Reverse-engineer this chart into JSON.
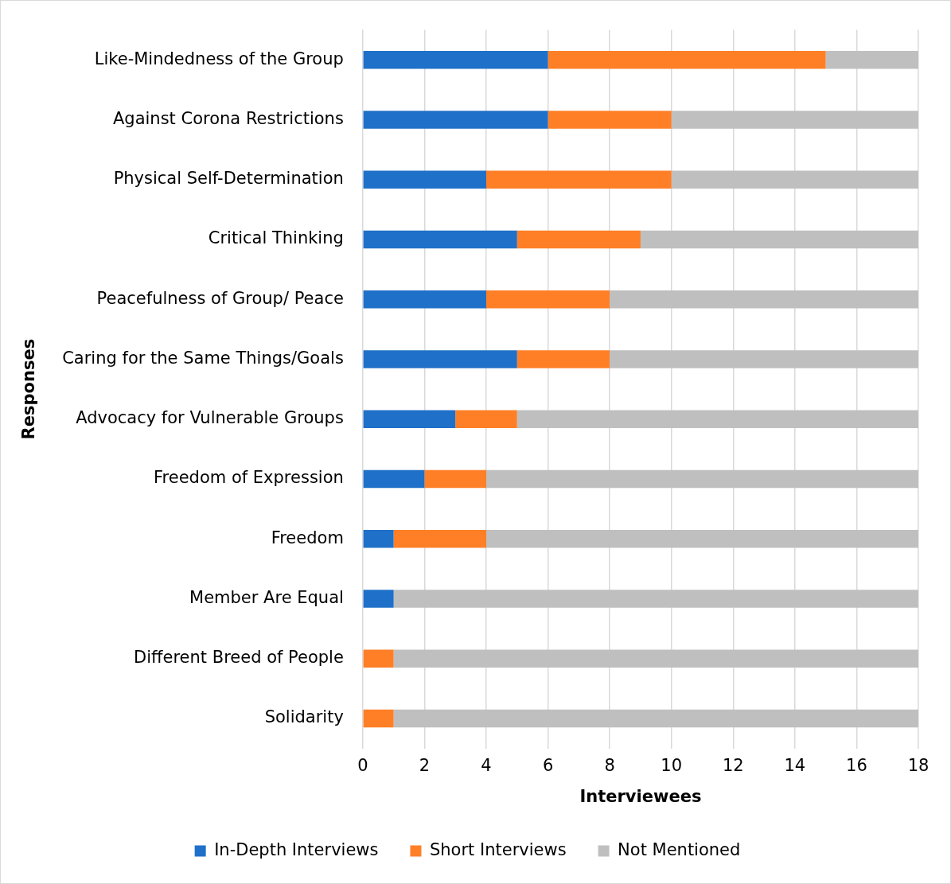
{
  "chart_data": {
    "type": "bar",
    "orientation": "horizontal",
    "stacked": true,
    "categories": [
      "Like-Mindedness of the Group",
      "Against Corona Restrictions",
      "Physical Self-Determination",
      "Critical Thinking",
      "Peacefulness of Group/ Peace",
      "Caring for the Same Things/Goals",
      "Advocacy for Vulnerable Groups",
      "Freedom of Expression",
      "Freedom",
      "Member Are Equal",
      "Different Breed of People",
      "Solidarity"
    ],
    "series": [
      {
        "name": "In-Depth Interviews",
        "color": "#1f70c8",
        "values": [
          6,
          6,
          4,
          5,
          4,
          5,
          3,
          2,
          1,
          1,
          0,
          0
        ]
      },
      {
        "name": "Short Interviews",
        "color": "#ff7f27",
        "values": [
          9,
          4,
          6,
          4,
          4,
          3,
          2,
          2,
          3,
          0,
          1,
          1
        ]
      },
      {
        "name": "Not Mentioned",
        "color": "#bfbfbf",
        "values": [
          3,
          8,
          8,
          9,
          10,
          10,
          13,
          14,
          14,
          17,
          17,
          17
        ]
      }
    ],
    "xlim": [
      0,
      18
    ],
    "xticks": [
      0,
      2,
      4,
      6,
      8,
      10,
      12,
      14,
      16,
      18
    ],
    "xlabel": "Interviewees",
    "ylabel": "Responses",
    "grid": "x",
    "legend": "bottom"
  }
}
